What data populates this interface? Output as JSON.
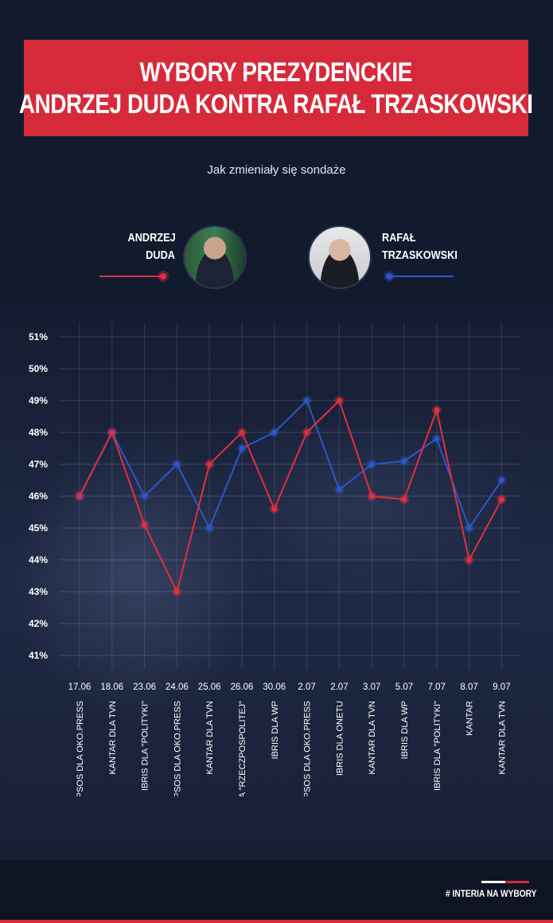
{
  "title_line1": "WYBORY PREZYDENCKIE",
  "title_line2": "ANDRZEJ DUDA KONTRA RAFAŁ TRZASKOWSKI",
  "subtitle": "Jak zmieniały się sondaże",
  "candidate_left": {
    "first": "ANDRZEJ",
    "last": "DUDA",
    "color": "#e0303f"
  },
  "candidate_right": {
    "first": "RAFAŁ",
    "last": "TRZASKOWSKI",
    "color": "#2f55c8"
  },
  "watermark": "# INTERIA NA WYBORY",
  "chart_data": {
    "type": "line",
    "dates": [
      "17.06",
      "18.06",
      "23.06",
      "24.06",
      "25.06",
      "26.06",
      "30.06",
      "2.07",
      "2.07",
      "3.07",
      "5.07",
      "7.07",
      "8.07",
      "9.07"
    ],
    "pollsters": [
      "IPSOS DLA OKO.PRESS",
      "KANTAR DLA TVN",
      "IBRIS DLA \"POLITYKI\"",
      "IPSOS DLA OKO.PRESS",
      "KANTAR DLA TVN",
      "IBRIS DLA \"RZECZPOSPOLITEJ\"",
      "IBRIS DLA WP",
      "IPSOS DLA OKO.PRESS",
      "IBRIS DLA ONETU",
      "KANTAR DLA TVN",
      "IBRIS DLA WP",
      "IBRIS DLA \"POLITYKI\"",
      "KANTAR",
      "KANTAR DLA TVN"
    ],
    "yticks": [
      "51%",
      "50%",
      "49%",
      "48%",
      "47%",
      "46%",
      "45%",
      "44%",
      "43%",
      "42%",
      "41%"
    ],
    "ylim": [
      41,
      51
    ],
    "grid": true,
    "series": [
      {
        "name": "ANDRZEJ DUDA",
        "color": "#e0303f",
        "values": [
          46,
          48,
          45.1,
          43,
          47,
          48,
          45.6,
          48,
          49,
          46,
          45.9,
          48.7,
          44,
          45.9
        ]
      },
      {
        "name": "RAFAŁ TRZASKOWSKI",
        "color": "#2f55c8",
        "values": [
          46,
          48,
          46,
          47,
          45,
          47.5,
          48,
          49,
          46.2,
          47,
          47.1,
          47.8,
          45,
          46.5
        ]
      }
    ]
  }
}
